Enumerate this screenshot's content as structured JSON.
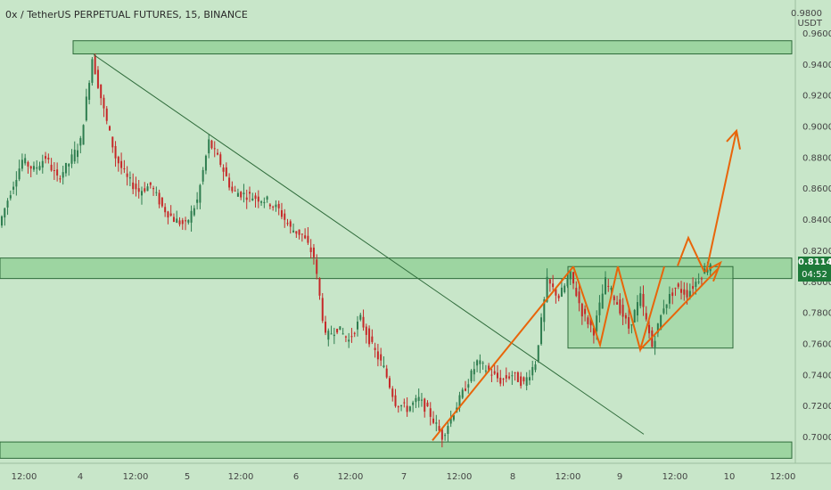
{
  "header": {
    "title": "0x / TetherUS PERPETUAL FUTURES, 15, BINANCE",
    "unit_top": "0.9800",
    "unit": "USDT"
  },
  "last_price": {
    "value": "0.8114",
    "countdown": "04:52"
  },
  "colors": {
    "background": "#c8e6c9",
    "up_candle": "#2e7d4f",
    "down_candle": "#c62828",
    "zone_fill": "#8fcf93",
    "zone_stroke": "#2e6b3a",
    "trendline": "#2e6b3a",
    "projection": "#e8650a",
    "price_tag": "#1e7a3a"
  },
  "chart_data": {
    "type": "candlestick",
    "title": "0x / TetherUS PERPETUAL FUTURES, 15, BINANCE",
    "ylabel": "USDT",
    "ylim": [
      0.68,
      0.98
    ],
    "y_ticks": [
      "0.9600",
      "0.9400",
      "0.9200",
      "0.9000",
      "0.8800",
      "0.8600",
      "0.8400",
      "0.8200",
      "0.8000",
      "0.7800",
      "0.7600",
      "0.7400",
      "0.7200",
      "0.7000"
    ],
    "x_ticks": [
      "12:00",
      "4",
      "12:00",
      "5",
      "12:00",
      "6",
      "12:00",
      "7",
      "12:00",
      "8",
      "12:00",
      "9",
      "12:00",
      "10",
      "12:00"
    ],
    "price_path": [
      0.836,
      0.858,
      0.878,
      0.872,
      0.88,
      0.866,
      0.876,
      0.89,
      0.944,
      0.91,
      0.88,
      0.866,
      0.858,
      0.862,
      0.848,
      0.84,
      0.836,
      0.852,
      0.89,
      0.876,
      0.858,
      0.856,
      0.854,
      0.852,
      0.846,
      0.834,
      0.83,
      0.816,
      0.764,
      0.77,
      0.762,
      0.776,
      0.758,
      0.744,
      0.722,
      0.718,
      0.724,
      0.714,
      0.7,
      0.716,
      0.732,
      0.748,
      0.742,
      0.736,
      0.74,
      0.734,
      0.748,
      0.8,
      0.79,
      0.804,
      0.78,
      0.768,
      0.8,
      0.786,
      0.77,
      0.79,
      0.758,
      0.784,
      0.796,
      0.792,
      0.802,
      0.812
    ],
    "zones": [
      {
        "name": "resistance-top",
        "from": 0.9465,
        "to": 0.955
      },
      {
        "name": "mid-support",
        "from": 0.8018,
        "to": 0.815
      },
      {
        "name": "bottom-support",
        "from": 0.686,
        "to": 0.6965
      },
      {
        "name": "consolidation-box",
        "from": 0.757,
        "to": 0.8095
      }
    ],
    "last_value": 0.8114,
    "grid": false
  }
}
